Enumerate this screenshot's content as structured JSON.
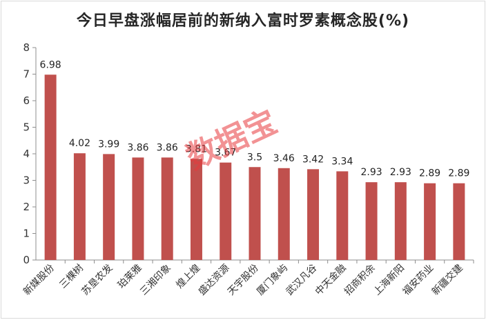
{
  "title": "今日早盘涨幅居前的新纳入富时罗素概念股(%)",
  "watermark": "数据宝",
  "colors": {
    "bar": "#c0504d",
    "axis": "#8c8c8c",
    "watermark": "#e8383d"
  },
  "chart_data": {
    "type": "bar",
    "title": "今日早盘涨幅居前的新纳入富时罗素概念股(%)",
    "xlabel": "",
    "ylabel": "",
    "ylim": [
      0,
      8
    ],
    "yticks": [
      0,
      1,
      2,
      3,
      4,
      5,
      6,
      7,
      8
    ],
    "grid": false,
    "legend": "none",
    "categories": [
      "新媒股份",
      "三棵树",
      "苏垦农发",
      "珀莱雅",
      "三湘印象",
      "煌上煌",
      "盛达资源",
      "天宇股份",
      "厦门象屿",
      "武汉凡谷",
      "中天金融",
      "招商积余",
      "上海新阳",
      "福安药业",
      "新疆交建"
    ],
    "values": [
      6.98,
      4.02,
      3.99,
      3.86,
      3.86,
      3.81,
      3.67,
      3.5,
      3.46,
      3.42,
      3.34,
      2.93,
      2.93,
      2.89,
      2.89
    ],
    "value_labels": [
      "6.98",
      "4.02",
      "3.99",
      "3.86",
      "3.86",
      "3.81",
      "3.67",
      "3.5",
      "3.46",
      "3.42",
      "3.34",
      "2.93",
      "2.93",
      "2.89",
      "2.89"
    ]
  }
}
